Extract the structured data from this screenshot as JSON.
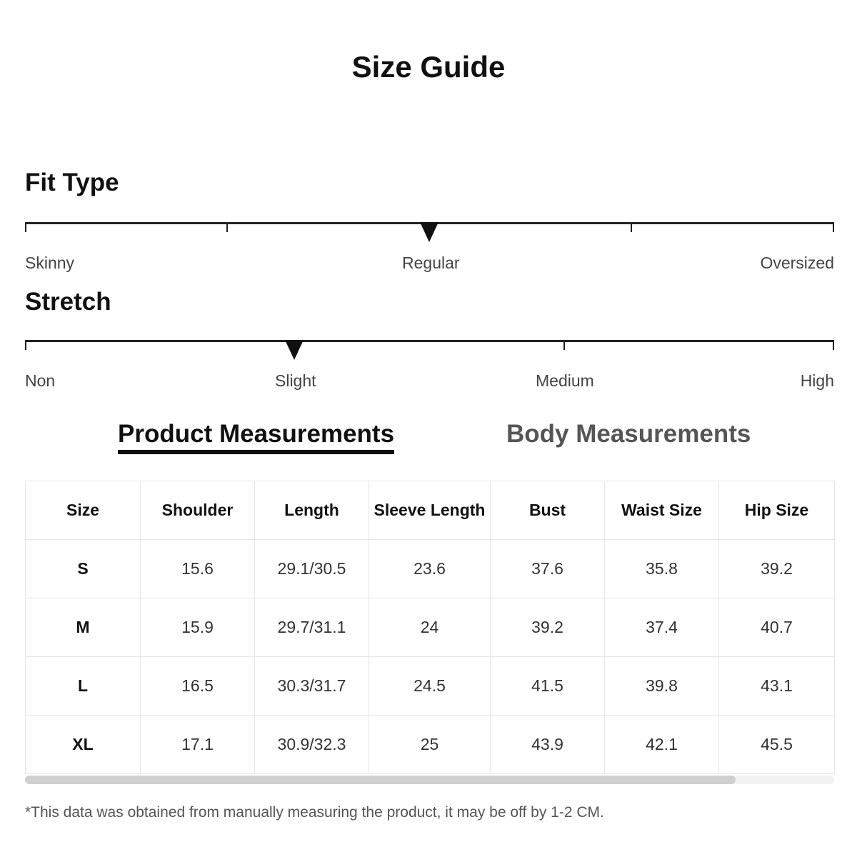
{
  "title": "Size Guide",
  "fit_type": {
    "heading": "Fit Type",
    "labels": [
      "Skinny",
      "Regular",
      "Oversized"
    ],
    "selected": "Regular",
    "position_fraction": 0.5
  },
  "stretch": {
    "heading": "Stretch",
    "labels": [
      "Non",
      "Slight",
      "Medium",
      "High"
    ],
    "selected": "Slight",
    "position_fraction": 0.333
  },
  "tabs": {
    "product": "Product Measurements",
    "body": "Body Measurements",
    "active": "product"
  },
  "table": {
    "headers": [
      "Size",
      "Shoulder",
      "Length",
      "Sleeve Length",
      "Bust",
      "Waist Size",
      "Hip Size"
    ],
    "rows": [
      [
        "S",
        "15.6",
        "29.1/30.5",
        "23.6",
        "37.6",
        "35.8",
        "39.2"
      ],
      [
        "M",
        "15.9",
        "29.7/31.1",
        "24",
        "39.2",
        "37.4",
        "40.7"
      ],
      [
        "L",
        "16.5",
        "30.3/31.7",
        "24.5",
        "41.5",
        "39.8",
        "43.1"
      ],
      [
        "XL",
        "17.1",
        "30.9/32.3",
        "25",
        "43.9",
        "42.1",
        "45.5"
      ]
    ]
  },
  "note": "*This data was obtained from manually measuring the product, it may be off by 1-2 CM."
}
